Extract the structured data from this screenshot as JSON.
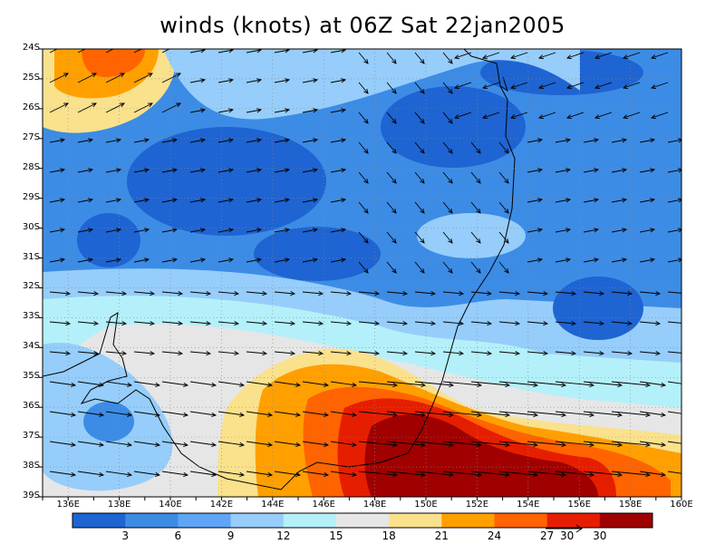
{
  "title": "winds (knots) at 06Z Sat 22jan2005",
  "map": {
    "lat_labels": [
      "24S",
      "25S",
      "26S",
      "27S",
      "28S",
      "29S",
      "30S",
      "31S",
      "32S",
      "33S",
      "34S",
      "35S",
      "36S",
      "37S",
      "38S",
      "39S"
    ],
    "lon_labels": [
      "136E",
      "138E",
      "140E",
      "142E",
      "144E",
      "146E",
      "148E",
      "150E",
      "152E",
      "154E",
      "156E",
      "158E",
      "160E"
    ],
    "lat_range": [
      -39,
      -24
    ],
    "lon_range": [
      135,
      160
    ],
    "grid": true
  },
  "colorbar": {
    "colors": [
      "#1e64d2",
      "#3c8ce6",
      "#5fa5f5",
      "#96cdfa",
      "#b4f0fa",
      "#e6e6e6",
      "#fae18c",
      "#ffa000",
      "#ff6400",
      "#e61e00",
      "#a00000"
    ],
    "labels": [
      "3",
      "6",
      "9",
      "12",
      "15",
      "18",
      "21",
      "24",
      "27",
      "30"
    ]
  },
  "reference_vector": {
    "label": "30"
  }
}
